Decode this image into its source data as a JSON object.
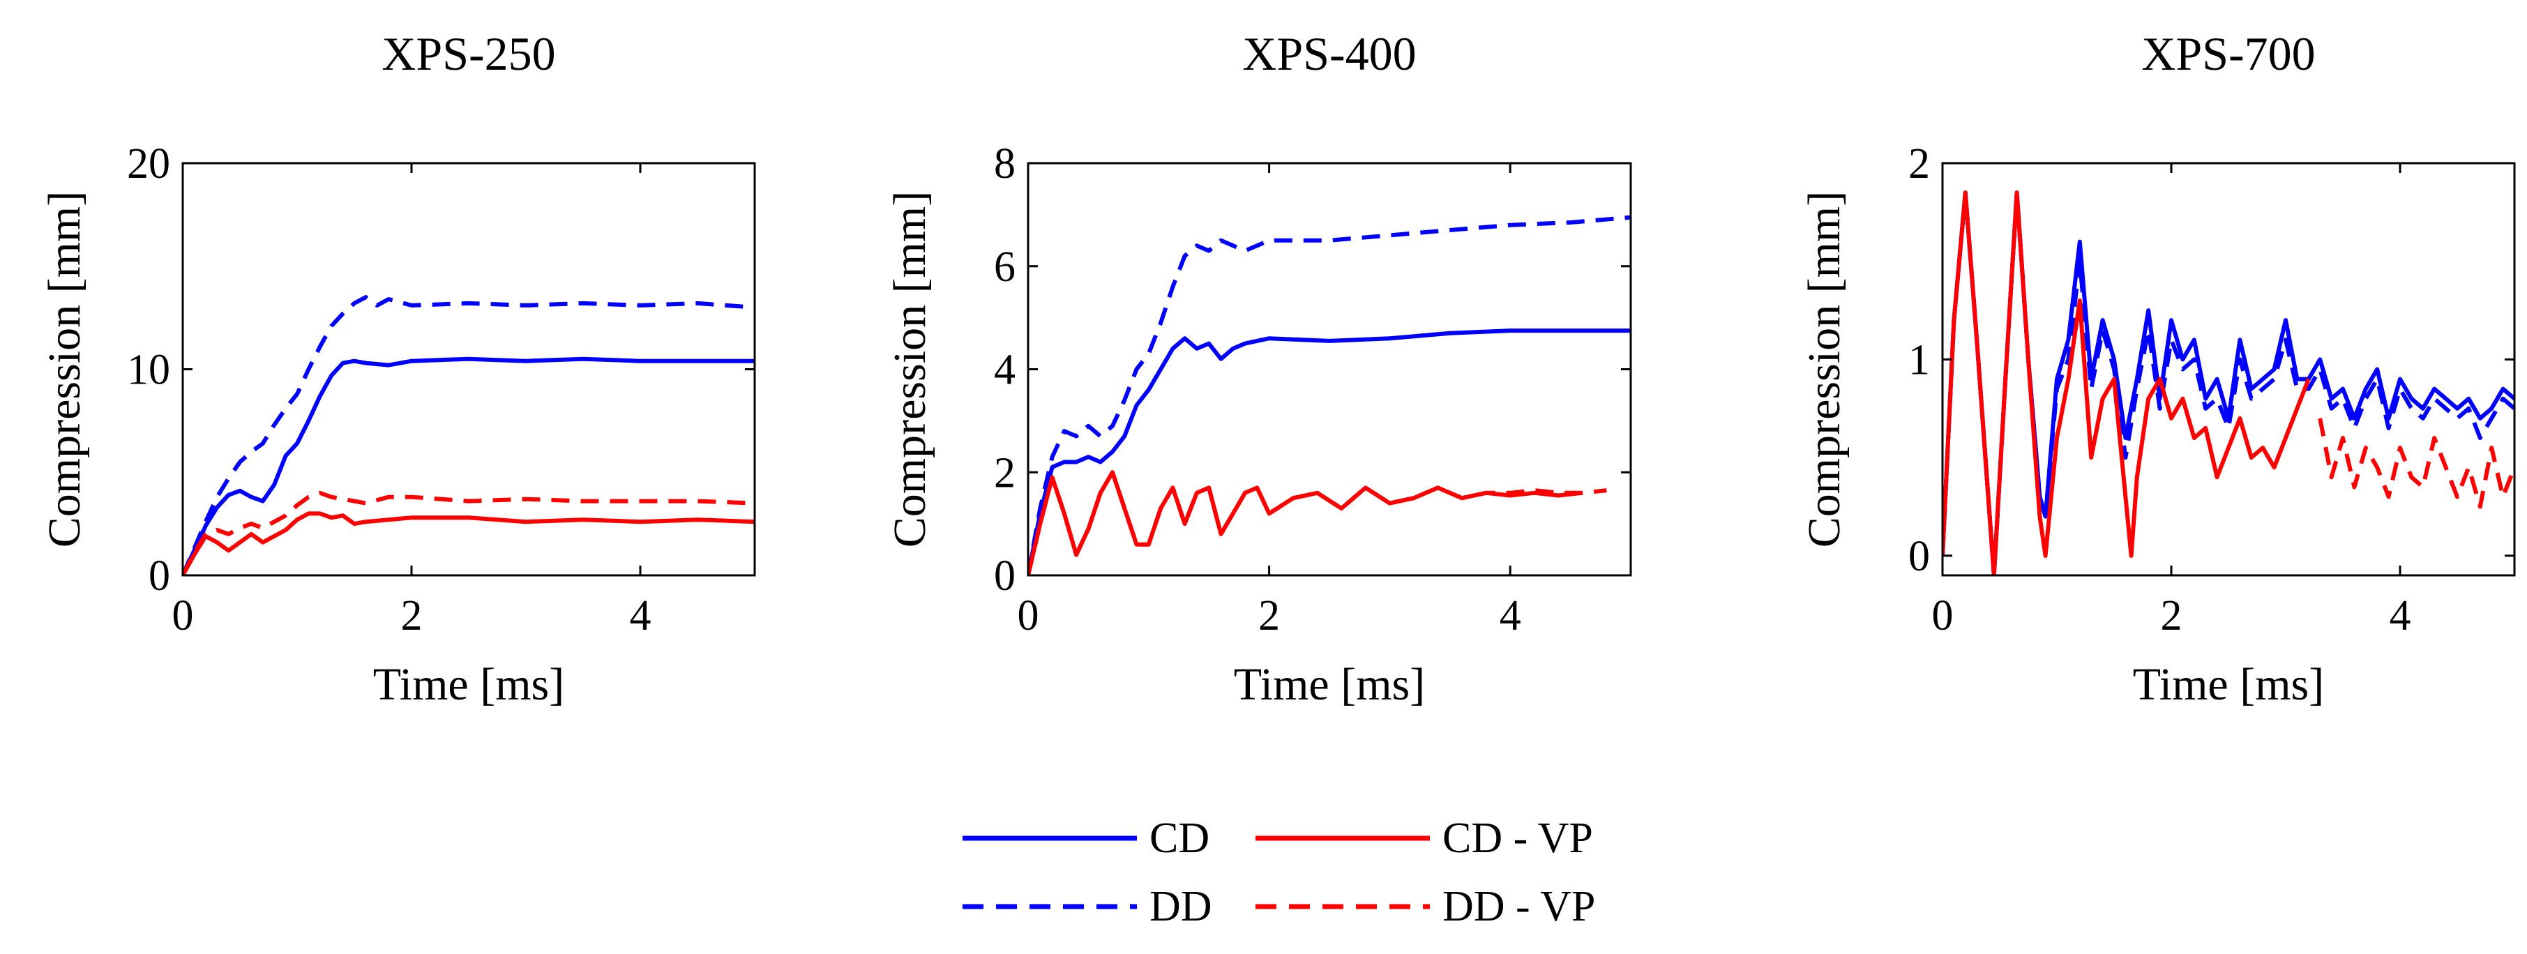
{
  "colors": {
    "cd": "#0000ff",
    "dd": "#0000ff",
    "cd_vp": "#ff0000",
    "dd_vp": "#ff0000",
    "axis": "#000000"
  },
  "legend": {
    "entries": [
      {
        "key": "cd",
        "label": "CD",
        "color": "#0000ff",
        "style": "solid"
      },
      {
        "key": "cd_vp",
        "label": "CD - VP",
        "color": "#ff0000",
        "style": "solid"
      },
      {
        "key": "dd",
        "label": "DD",
        "color": "#0000ff",
        "style": "dashed"
      },
      {
        "key": "dd_vp",
        "label": "DD - VP",
        "color": "#ff0000",
        "style": "dashed"
      }
    ]
  },
  "chart_data": [
    {
      "type": "line",
      "title": "XPS-250",
      "xlabel": "Time [ms]",
      "ylabel": "Compression [mm]",
      "xlim": [
        0,
        5
      ],
      "ylim": [
        0,
        20
      ],
      "xticks": [
        0,
        2,
        4
      ],
      "yticks": [
        0,
        10,
        20
      ],
      "series": [
        {
          "name": "CD",
          "color": "#0000ff",
          "style": "solid",
          "x": [
            0,
            0.1,
            0.2,
            0.3,
            0.4,
            0.5,
            0.6,
            0.7,
            0.8,
            0.9,
            1.0,
            1.1,
            1.2,
            1.3,
            1.4,
            1.5,
            1.6,
            1.8,
            2.0,
            2.5,
            3.0,
            3.5,
            4.0,
            4.5,
            5.0
          ],
          "y": [
            0,
            1.2,
            2.4,
            3.3,
            3.9,
            4.1,
            3.8,
            3.6,
            4.4,
            5.8,
            6.4,
            7.5,
            8.7,
            9.7,
            10.3,
            10.4,
            10.3,
            10.2,
            10.4,
            10.5,
            10.4,
            10.5,
            10.4,
            10.4,
            10.4
          ]
        },
        {
          "name": "DD",
          "color": "#0000ff",
          "style": "dashed",
          "x": [
            0,
            0.1,
            0.2,
            0.3,
            0.4,
            0.5,
            0.6,
            0.7,
            0.8,
            0.9,
            1.0,
            1.1,
            1.2,
            1.3,
            1.4,
            1.5,
            1.6,
            1.7,
            1.8,
            2.0,
            2.5,
            3.0,
            3.5,
            4.0,
            4.5,
            5.0
          ],
          "y": [
            0,
            1.3,
            2.6,
            3.8,
            4.7,
            5.5,
            6.0,
            6.4,
            7.3,
            8.1,
            8.8,
            10.0,
            11.1,
            12.1,
            12.7,
            13.2,
            13.5,
            13.1,
            13.4,
            13.1,
            13.2,
            13.1,
            13.2,
            13.1,
            13.2,
            13.0
          ]
        },
        {
          "name": "CD - VP",
          "color": "#ff0000",
          "style": "solid",
          "x": [
            0,
            0.1,
            0.2,
            0.3,
            0.4,
            0.5,
            0.6,
            0.7,
            0.8,
            0.9,
            1.0,
            1.1,
            1.2,
            1.3,
            1.4,
            1.5,
            1.6,
            1.8,
            2.0,
            2.5,
            3.0,
            3.5,
            4.0,
            4.5,
            5.0
          ],
          "y": [
            0,
            1.0,
            1.9,
            1.6,
            1.2,
            1.6,
            2.0,
            1.6,
            1.9,
            2.2,
            2.7,
            3.0,
            3.0,
            2.8,
            2.9,
            2.5,
            2.6,
            2.7,
            2.8,
            2.8,
            2.6,
            2.7,
            2.6,
            2.7,
            2.6
          ]
        },
        {
          "name": "DD - VP",
          "color": "#ff0000",
          "style": "dashed",
          "x": [
            0,
            0.1,
            0.2,
            0.3,
            0.4,
            0.5,
            0.6,
            0.7,
            0.8,
            0.9,
            1.0,
            1.1,
            1.2,
            1.3,
            1.4,
            1.5,
            1.6,
            1.8,
            2.0,
            2.5,
            3.0,
            3.5,
            4.0,
            4.5,
            5.0
          ],
          "y": [
            0,
            1.1,
            2.0,
            2.2,
            2.0,
            2.3,
            2.5,
            2.3,
            2.6,
            2.9,
            3.4,
            3.8,
            4.0,
            3.8,
            3.7,
            3.6,
            3.5,
            3.8,
            3.8,
            3.6,
            3.7,
            3.6,
            3.6,
            3.6,
            3.5
          ]
        }
      ]
    },
    {
      "type": "line",
      "title": "XPS-400",
      "xlabel": "Time [ms]",
      "ylabel": "Compression [mm]",
      "xlim": [
        0,
        5
      ],
      "ylim": [
        0,
        8
      ],
      "xticks": [
        0,
        2,
        4
      ],
      "yticks": [
        0,
        2,
        4,
        6,
        8
      ],
      "series": [
        {
          "name": "CD",
          "color": "#0000ff",
          "style": "solid",
          "x": [
            0,
            0.1,
            0.2,
            0.3,
            0.4,
            0.5,
            0.6,
            0.7,
            0.8,
            0.9,
            1.0,
            1.1,
            1.2,
            1.3,
            1.4,
            1.5,
            1.6,
            1.7,
            1.8,
            2.0,
            2.5,
            3.0,
            3.5,
            4.0,
            4.5,
            5.0
          ],
          "y": [
            0,
            1.2,
            2.1,
            2.2,
            2.2,
            2.3,
            2.2,
            2.4,
            2.7,
            3.3,
            3.6,
            4.0,
            4.4,
            4.6,
            4.4,
            4.5,
            4.2,
            4.4,
            4.5,
            4.6,
            4.55,
            4.6,
            4.7,
            4.75,
            4.75,
            4.75
          ]
        },
        {
          "name": "DD",
          "color": "#0000ff",
          "style": "dashed",
          "x": [
            0,
            0.1,
            0.2,
            0.3,
            0.4,
            0.5,
            0.6,
            0.7,
            0.8,
            0.9,
            1.0,
            1.1,
            1.2,
            1.3,
            1.4,
            1.5,
            1.6,
            1.8,
            2.0,
            2.5,
            3.0,
            3.5,
            4.0,
            4.5,
            5.0
          ],
          "y": [
            0,
            1.3,
            2.3,
            2.8,
            2.7,
            2.9,
            2.7,
            2.9,
            3.4,
            4.0,
            4.3,
            4.9,
            5.6,
            6.2,
            6.4,
            6.3,
            6.5,
            6.3,
            6.5,
            6.5,
            6.6,
            6.7,
            6.8,
            6.85,
            6.95
          ]
        },
        {
          "name": "CD - VP",
          "color": "#ff0000",
          "style": "solid",
          "x": [
            0,
            0.1,
            0.2,
            0.3,
            0.4,
            0.5,
            0.6,
            0.7,
            0.8,
            0.9,
            1.0,
            1.1,
            1.2,
            1.3,
            1.4,
            1.5,
            1.6,
            1.7,
            1.8,
            1.9,
            2.0,
            2.2,
            2.4,
            2.6,
            2.8,
            3.0,
            3.2,
            3.4,
            3.6,
            3.8,
            4.0,
            4.2,
            4.4,
            4.6
          ],
          "y": [
            0,
            1.0,
            1.9,
            1.2,
            0.4,
            0.9,
            1.6,
            2.0,
            1.3,
            0.6,
            0.6,
            1.3,
            1.7,
            1.0,
            1.6,
            1.7,
            0.8,
            1.2,
            1.6,
            1.7,
            1.2,
            1.5,
            1.6,
            1.3,
            1.7,
            1.4,
            1.5,
            1.7,
            1.5,
            1.6,
            1.55,
            1.6,
            1.55,
            1.6
          ]
        },
        {
          "name": "DD - VP",
          "color": "#ff0000",
          "style": "dashed",
          "x": [
            0,
            0.1,
            0.2,
            0.3,
            0.4,
            0.5,
            0.6,
            0.7,
            0.8,
            0.9,
            1.0,
            1.1,
            1.2,
            1.3,
            1.4,
            1.5,
            1.6,
            1.7,
            1.8,
            1.9,
            2.0,
            2.2,
            2.4,
            2.6,
            2.8,
            3.0,
            3.2,
            3.4,
            3.6,
            3.8,
            4.0,
            4.2,
            4.4,
            4.6,
            4.8
          ],
          "y": [
            0,
            1.0,
            1.9,
            1.2,
            0.4,
            0.9,
            1.6,
            2.0,
            1.3,
            0.6,
            0.6,
            1.3,
            1.7,
            1.0,
            1.6,
            1.7,
            0.8,
            1.2,
            1.6,
            1.7,
            1.2,
            1.5,
            1.6,
            1.3,
            1.7,
            1.4,
            1.5,
            1.7,
            1.5,
            1.6,
            1.6,
            1.65,
            1.6,
            1.6,
            1.65
          ]
        }
      ]
    },
    {
      "type": "line",
      "title": "XPS-700",
      "xlabel": "Time [ms]",
      "ylabel": "Compression [mm]",
      "xlim": [
        0,
        5
      ],
      "ylim": [
        -0.1,
        2
      ],
      "xticks": [
        0,
        2,
        4
      ],
      "yticks": [
        0,
        1,
        2
      ],
      "series": [
        {
          "name": "CD",
          "color": "#0000ff",
          "style": "solid",
          "x": [
            0,
            0.1,
            0.2,
            0.3,
            0.45,
            0.55,
            0.65,
            0.75,
            0.85,
            0.9,
            1.0,
            1.1,
            1.2,
            1.3,
            1.4,
            1.5,
            1.6,
            1.7,
            1.8,
            1.9,
            2.0,
            2.1,
            2.2,
            2.3,
            2.4,
            2.5,
            2.6,
            2.7,
            2.8,
            2.9,
            3.0,
            3.1,
            3.2,
            3.3,
            3.4,
            3.5,
            3.6,
            3.7,
            3.8,
            3.9,
            4.0,
            4.1,
            4.2,
            4.3,
            4.4,
            4.5,
            4.6,
            4.7,
            4.8,
            4.9,
            5.0
          ],
          "y": [
            0,
            1.2,
            1.85,
            1.1,
            -0.1,
            0.9,
            1.85,
            1.0,
            0.3,
            0.2,
            0.9,
            1.1,
            1.6,
            0.9,
            1.2,
            1.0,
            0.6,
            0.9,
            1.25,
            0.8,
            1.2,
            1.0,
            1.1,
            0.8,
            0.9,
            0.7,
            1.1,
            0.85,
            0.9,
            0.95,
            1.2,
            0.9,
            0.9,
            1.0,
            0.8,
            0.85,
            0.7,
            0.85,
            0.95,
            0.7,
            0.9,
            0.8,
            0.75,
            0.85,
            0.8,
            0.75,
            0.8,
            0.7,
            0.75,
            0.85,
            0.8
          ]
        },
        {
          "name": "DD",
          "color": "#0000ff",
          "style": "dashed",
          "x": [
            0,
            0.1,
            0.2,
            0.3,
            0.45,
            0.55,
            0.65,
            0.75,
            0.85,
            0.9,
            1.0,
            1.1,
            1.2,
            1.3,
            1.4,
            1.5,
            1.6,
            1.7,
            1.8,
            1.9,
            2.0,
            2.1,
            2.2,
            2.3,
            2.4,
            2.5,
            2.6,
            2.7,
            2.8,
            2.9,
            3.0,
            3.1,
            3.2,
            3.3,
            3.4,
            3.5,
            3.6,
            3.7,
            3.8,
            3.9,
            4.0,
            4.1,
            4.2,
            4.3,
            4.4,
            4.5,
            4.6,
            4.7,
            4.8,
            4.9,
            5.0
          ],
          "y": [
            0,
            1.2,
            1.85,
            1.1,
            -0.1,
            0.9,
            1.85,
            1.0,
            0.3,
            0.2,
            0.85,
            1.0,
            1.5,
            0.85,
            1.15,
            0.95,
            0.5,
            0.85,
            1.15,
            0.75,
            1.1,
            0.95,
            1.0,
            0.75,
            0.8,
            0.65,
            1.0,
            0.8,
            0.85,
            0.9,
            1.1,
            0.85,
            0.85,
            0.95,
            0.75,
            0.8,
            0.65,
            0.8,
            0.9,
            0.65,
            0.85,
            0.75,
            0.7,
            0.8,
            0.75,
            0.7,
            0.75,
            0.6,
            0.7,
            0.8,
            0.75
          ]
        },
        {
          "name": "CD - VP",
          "color": "#ff0000",
          "style": "solid",
          "x": [
            0,
            0.1,
            0.2,
            0.3,
            0.45,
            0.55,
            0.65,
            0.75,
            0.85,
            0.9,
            1.0,
            1.1,
            1.2,
            1.3,
            1.4,
            1.5,
            1.6,
            1.65,
            1.7,
            1.8,
            1.9,
            2.0,
            2.1,
            2.2,
            2.3,
            2.4,
            2.5,
            2.6,
            2.7,
            2.8,
            2.9,
            3.0,
            3.1,
            3.2
          ],
          "y": [
            0,
            1.2,
            1.85,
            1.1,
            -0.1,
            0.9,
            1.85,
            1.0,
            0.2,
            0.0,
            0.6,
            0.9,
            1.3,
            0.5,
            0.8,
            0.9,
            0.3,
            0.0,
            0.4,
            0.8,
            0.9,
            0.7,
            0.8,
            0.6,
            0.65,
            0.4,
            0.55,
            0.7,
            0.5,
            0.55,
            0.45,
            0.6,
            0.75,
            0.9
          ]
        },
        {
          "name": "DD - VP",
          "color": "#ff0000",
          "style": "dashed",
          "x": [
            3.3,
            3.4,
            3.5,
            3.6,
            3.7,
            3.8,
            3.9,
            4.0,
            4.1,
            4.2,
            4.3,
            4.4,
            4.5,
            4.6,
            4.7,
            4.8,
            4.9,
            5.0
          ],
          "y": [
            0.7,
            0.4,
            0.6,
            0.35,
            0.55,
            0.45,
            0.3,
            0.55,
            0.4,
            0.35,
            0.6,
            0.45,
            0.3,
            0.45,
            0.25,
            0.55,
            0.3,
            0.45
          ]
        }
      ]
    }
  ]
}
